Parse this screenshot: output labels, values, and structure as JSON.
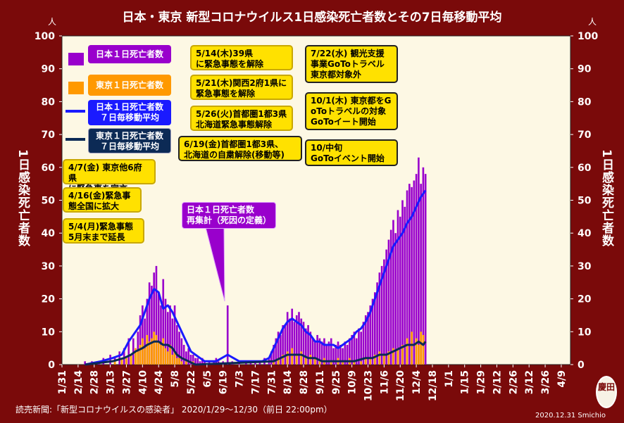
{
  "title": "日本・東京 新型コロナウイルス1日感染死亡者数とその7日毎移動平均",
  "unit_left": "人",
  "unit_right": "人",
  "ylabel": "1日感染死亡者数",
  "source": "読売新聞:「新型コロナウイルスの感染者」 2020/1/29～12/30（前日 22:00pm）",
  "credit": "2020.12.31 Smichio",
  "stamp_text": "慶田",
  "colors": {
    "background": "#7a0a0a",
    "plot_bg": "#fdf8e4",
    "japan_daily": "#9900cc",
    "tokyo_daily": "#ff9900",
    "japan_avg": "#1a1aff",
    "tokyo_avg": "#0c2a55",
    "note_yellow": "#ffe100"
  },
  "legend": {
    "japan_daily": "日本１日死亡者数",
    "tokyo_daily": "東京１日死亡者数",
    "japan_avg_1": "日本１日死亡者数",
    "japan_avg_2": "７日毎移動平均",
    "tokyo_avg_1": "東京１日死亡者数",
    "tokyo_avg_2": "７日毎移動平均"
  },
  "annotations": {
    "a1_1": "4/7(金) 東京他6府県",
    "a1_2": "に緊急事を宣言",
    "a2_1": "4/16(金)緊急事",
    "a2_2": "態全国に拡大",
    "a3_1": "5/4(月)緊急事態",
    "a3_2": "5月末まで延長",
    "a4_1": "5/14(木)39県",
    "a4_2": "に緊急事態を解除",
    "a5_1": "5/21(木)関西2府1県に",
    "a5_2": "緊急事態を解除",
    "a6_1": "5/26(火)首都圏1都3県",
    "a6_2": "北海道緊急事態解除",
    "a7_1": "6/19(金)首都圏1都3県、",
    "a7_2": "北海道の自粛解除(移動等)",
    "a8_1": "7/22(水) 観光支援",
    "a8_2": "事業GoToトラベル",
    "a8_3": "東京都対象外",
    "a9_1": "10/1(木) 東京都をG",
    "a9_2": "oToトラベルの対象",
    "a9_3": "GoToイート開始",
    "a10_1": "10/中旬",
    "a10_2": "GoToイベント開始",
    "callout_1": "日本１日死亡者数",
    "callout_2": "再集計（死因の定義）"
  },
  "chart_data": {
    "type": "bar",
    "x_tick_labels": [
      "1/31",
      "2/14",
      "2/28",
      "3/13",
      "3/27",
      "4/10",
      "4/24",
      "5/8",
      "5/22",
      "6/5",
      "6/19",
      "7/3",
      "7/17",
      "7/31",
      "8/14",
      "8/28",
      "9/11",
      "9/25",
      "10/9",
      "10/23",
      "11/6",
      "11/20",
      "12/4",
      "12/18",
      "1/1",
      "1/15",
      "1/29",
      "2/12",
      "2/26",
      "3/12",
      "3/26",
      "4/9"
    ],
    "y_ticks": [
      0,
      10,
      20,
      30,
      40,
      50,
      60,
      70,
      80,
      90,
      100
    ],
    "ylim": [
      0,
      100
    ],
    "grid": false,
    "series": [
      {
        "name": "日本１日死亡者数",
        "kind": "bar",
        "points": [
          [
            16,
            1
          ],
          [
            22,
            1
          ],
          [
            28,
            1
          ],
          [
            32,
            2
          ],
          [
            38,
            3
          ],
          [
            42,
            2
          ],
          [
            46,
            4
          ],
          [
            50,
            5
          ],
          [
            54,
            8
          ],
          [
            58,
            8
          ],
          [
            62,
            10
          ],
          [
            64,
            15
          ],
          [
            66,
            18
          ],
          [
            68,
            14
          ],
          [
            70,
            20
          ],
          [
            72,
            25
          ],
          [
            74,
            24
          ],
          [
            76,
            28
          ],
          [
            78,
            30
          ],
          [
            80,
            22
          ],
          [
            82,
            18
          ],
          [
            84,
            26
          ],
          [
            86,
            20
          ],
          [
            88,
            16
          ],
          [
            90,
            18
          ],
          [
            92,
            14
          ],
          [
            94,
            18
          ],
          [
            96,
            12
          ],
          [
            98,
            10
          ],
          [
            100,
            8
          ],
          [
            102,
            6
          ],
          [
            104,
            4
          ],
          [
            106,
            5
          ],
          [
            108,
            3
          ],
          [
            110,
            3
          ],
          [
            112,
            2
          ],
          [
            114,
            2
          ],
          [
            116,
            1
          ],
          [
            118,
            2
          ],
          [
            120,
            1
          ],
          [
            124,
            1
          ],
          [
            128,
            1
          ],
          [
            130,
            2
          ],
          [
            132,
            1
          ],
          [
            136,
            1
          ],
          [
            140,
            18
          ],
          [
            144,
            1
          ],
          [
            150,
            1
          ],
          [
            156,
            1
          ],
          [
            160,
            1
          ],
          [
            164,
            1
          ],
          [
            168,
            1
          ],
          [
            172,
            2
          ],
          [
            176,
            2
          ],
          [
            178,
            4
          ],
          [
            180,
            6
          ],
          [
            182,
            8
          ],
          [
            184,
            10
          ],
          [
            186,
            9
          ],
          [
            188,
            12
          ],
          [
            190,
            12
          ],
          [
            192,
            16
          ],
          [
            194,
            14
          ],
          [
            196,
            17
          ],
          [
            198,
            13
          ],
          [
            200,
            15
          ],
          [
            202,
            16
          ],
          [
            204,
            14
          ],
          [
            206,
            13
          ],
          [
            208,
            11
          ],
          [
            210,
            12
          ],
          [
            212,
            10
          ],
          [
            214,
            8
          ],
          [
            216,
            7
          ],
          [
            218,
            9
          ],
          [
            220,
            8
          ],
          [
            222,
            7
          ],
          [
            224,
            8
          ],
          [
            226,
            6
          ],
          [
            228,
            7
          ],
          [
            230,
            8
          ],
          [
            232,
            5
          ],
          [
            234,
            6
          ],
          [
            236,
            7
          ],
          [
            238,
            6
          ],
          [
            240,
            5
          ],
          [
            242,
            7
          ],
          [
            244,
            6
          ],
          [
            246,
            8
          ],
          [
            248,
            9
          ],
          [
            250,
            10
          ],
          [
            252,
            8
          ],
          [
            254,
            11
          ],
          [
            256,
            10
          ],
          [
            258,
            13
          ],
          [
            260,
            15
          ],
          [
            262,
            16
          ],
          [
            264,
            18
          ],
          [
            266,
            20
          ],
          [
            268,
            22
          ],
          [
            270,
            25
          ],
          [
            272,
            28
          ],
          [
            274,
            30
          ],
          [
            276,
            32
          ],
          [
            278,
            35
          ],
          [
            280,
            38
          ],
          [
            282,
            41
          ],
          [
            284,
            44
          ],
          [
            286,
            40
          ],
          [
            288,
            47
          ],
          [
            290,
            45
          ],
          [
            292,
            50
          ],
          [
            294,
            48
          ],
          [
            296,
            53
          ],
          [
            298,
            55
          ],
          [
            300,
            54
          ],
          [
            302,
            56
          ],
          [
            304,
            58
          ],
          [
            306,
            63
          ],
          [
            308,
            55
          ],
          [
            310,
            60
          ],
          [
            312,
            58
          ]
        ]
      },
      {
        "name": "東京１日死亡者数",
        "kind": "bar",
        "points": [
          [
            42,
            1
          ],
          [
            48,
            2
          ],
          [
            52,
            2
          ],
          [
            56,
            3
          ],
          [
            60,
            5
          ],
          [
            62,
            4
          ],
          [
            64,
            6
          ],
          [
            66,
            8
          ],
          [
            68,
            5
          ],
          [
            70,
            9
          ],
          [
            72,
            7
          ],
          [
            74,
            8
          ],
          [
            76,
            10
          ],
          [
            78,
            9
          ],
          [
            80,
            7
          ],
          [
            82,
            6
          ],
          [
            84,
            8
          ],
          [
            86,
            5
          ],
          [
            88,
            4
          ],
          [
            90,
            6
          ],
          [
            92,
            3
          ],
          [
            94,
            4
          ],
          [
            96,
            2
          ],
          [
            98,
            2
          ],
          [
            100,
            1
          ],
          [
            104,
            1
          ],
          [
            110,
            1
          ],
          [
            180,
            1
          ],
          [
            184,
            2
          ],
          [
            188,
            3
          ],
          [
            192,
            4
          ],
          [
            196,
            5
          ],
          [
            200,
            3
          ],
          [
            204,
            4
          ],
          [
            208,
            2
          ],
          [
            212,
            3
          ],
          [
            216,
            2
          ],
          [
            220,
            1
          ],
          [
            224,
            2
          ],
          [
            230,
            1
          ],
          [
            236,
            2
          ],
          [
            240,
            1
          ],
          [
            246,
            2
          ],
          [
            250,
            1
          ],
          [
            256,
            1
          ],
          [
            260,
            2
          ],
          [
            264,
            2
          ],
          [
            268,
            3
          ],
          [
            272,
            4
          ],
          [
            276,
            3
          ],
          [
            280,
            4
          ],
          [
            284,
            5
          ],
          [
            288,
            5
          ],
          [
            292,
            6
          ],
          [
            296,
            8
          ],
          [
            300,
            10
          ],
          [
            304,
            8
          ],
          [
            306,
            6
          ],
          [
            308,
            10
          ],
          [
            310,
            9
          ]
        ]
      },
      {
        "name": "日本１日死亡者数 ７日毎移動平均",
        "kind": "line",
        "points": [
          [
            16,
            0
          ],
          [
            30,
            1
          ],
          [
            40,
            2
          ],
          [
            48,
            3
          ],
          [
            54,
            7
          ],
          [
            60,
            10
          ],
          [
            64,
            12
          ],
          [
            68,
            16
          ],
          [
            72,
            20
          ],
          [
            76,
            23
          ],
          [
            80,
            22
          ],
          [
            84,
            17
          ],
          [
            88,
            18
          ],
          [
            92,
            16
          ],
          [
            96,
            13
          ],
          [
            100,
            10
          ],
          [
            104,
            7
          ],
          [
            108,
            4
          ],
          [
            112,
            3
          ],
          [
            116,
            2
          ],
          [
            120,
            1
          ],
          [
            130,
            1
          ],
          [
            140,
            3
          ],
          [
            150,
            1
          ],
          [
            160,
            1
          ],
          [
            170,
            1
          ],
          [
            176,
            2
          ],
          [
            180,
            5
          ],
          [
            184,
            8
          ],
          [
            188,
            11
          ],
          [
            192,
            13
          ],
          [
            196,
            14
          ],
          [
            200,
            13
          ],
          [
            204,
            12
          ],
          [
            208,
            10
          ],
          [
            212,
            9
          ],
          [
            216,
            7
          ],
          [
            220,
            7
          ],
          [
            224,
            6
          ],
          [
            228,
            6
          ],
          [
            232,
            6
          ],
          [
            236,
            5
          ],
          [
            240,
            6
          ],
          [
            244,
            7
          ],
          [
            248,
            8
          ],
          [
            252,
            10
          ],
          [
            256,
            11
          ],
          [
            260,
            13
          ],
          [
            264,
            16
          ],
          [
            268,
            20
          ],
          [
            272,
            24
          ],
          [
            276,
            28
          ],
          [
            280,
            32
          ],
          [
            284,
            36
          ],
          [
            288,
            38
          ],
          [
            292,
            40
          ],
          [
            296,
            43
          ],
          [
            300,
            45
          ],
          [
            304,
            48
          ],
          [
            308,
            51
          ],
          [
            312,
            53
          ]
        ]
      },
      {
        "name": "東京１日死亡者数 ７日毎移動平均",
        "kind": "line",
        "points": [
          [
            16,
            0
          ],
          [
            40,
            1
          ],
          [
            50,
            2
          ],
          [
            56,
            3
          ],
          [
            60,
            4
          ],
          [
            66,
            5
          ],
          [
            70,
            6
          ],
          [
            76,
            7
          ],
          [
            80,
            7
          ],
          [
            84,
            6
          ],
          [
            88,
            6
          ],
          [
            92,
            5
          ],
          [
            96,
            3
          ],
          [
            100,
            2
          ],
          [
            106,
            1
          ],
          [
            112,
            0
          ],
          [
            180,
            1
          ],
          [
            186,
            2
          ],
          [
            192,
            3
          ],
          [
            198,
            3
          ],
          [
            204,
            3
          ],
          [
            210,
            2
          ],
          [
            216,
            2
          ],
          [
            222,
            1
          ],
          [
            230,
            1
          ],
          [
            240,
            1
          ],
          [
            250,
            1
          ],
          [
            260,
            2
          ],
          [
            266,
            2
          ],
          [
            272,
            3
          ],
          [
            278,
            3
          ],
          [
            284,
            4
          ],
          [
            290,
            5
          ],
          [
            296,
            6
          ],
          [
            302,
            6
          ],
          [
            306,
            7
          ],
          [
            310,
            6
          ],
          [
            312,
            7
          ]
        ]
      }
    ]
  }
}
